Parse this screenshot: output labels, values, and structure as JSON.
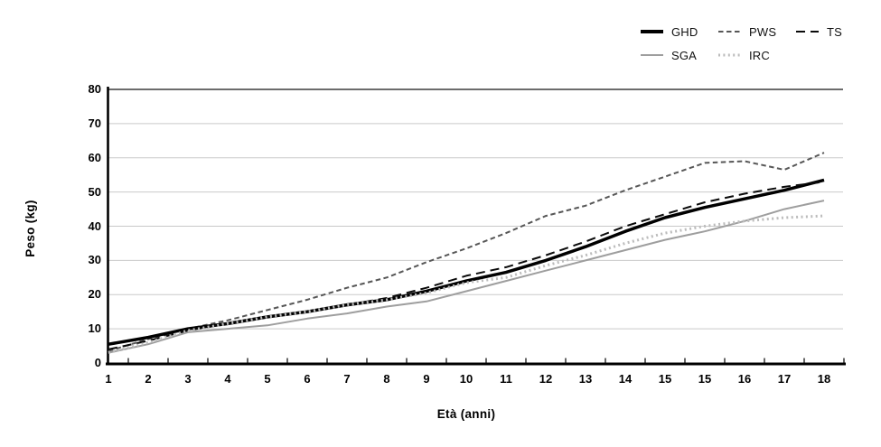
{
  "chart_data": {
    "type": "line",
    "title": "",
    "title_x": "Età (anni)",
    "title_y": "Peso (kg)",
    "categories": [
      "1",
      "2",
      "3",
      "4",
      "5",
      "6",
      "7",
      "8",
      "9",
      "10",
      "11",
      "12",
      "13",
      "14",
      "15",
      "15",
      "16",
      "17",
      "18"
    ],
    "y_axis": {
      "min": 0,
      "max": 80,
      "step": 10,
      "tick_labels": [
        "0",
        "10",
        "20",
        "30",
        "40",
        "50",
        "60",
        "70",
        "80"
      ]
    },
    "grid": "horizontal",
    "legend_position": "top-right",
    "colors": {
      "gridline": "#c9c9c9",
      "plot_top_border": "#3c3c3c",
      "axis": "#000000"
    },
    "series": [
      {
        "name": "GHD",
        "color": "#000000",
        "dash": "solid",
        "width": 3.5,
        "values": [
          5.5,
          7.5,
          10,
          11.5,
          13.5,
          15,
          17,
          18.5,
          21,
          24,
          26.5,
          30,
          34,
          38.5,
          42.5,
          45.5,
          48,
          50.5,
          53.5
        ]
      },
      {
        "name": "PWS",
        "color": "#575757",
        "dash": "dash",
        "width": 2,
        "values": [
          3.5,
          7,
          10,
          12.5,
          15.5,
          18.5,
          22,
          25,
          29.5,
          33.5,
          38,
          43,
          46,
          50.5,
          54.5,
          58.5,
          59,
          56.5,
          61.5
        ]
      },
      {
        "name": "TS",
        "color": "#0a0a0a",
        "dash": "longdash",
        "width": 2,
        "values": [
          4,
          6.5,
          9.5,
          11.5,
          13.5,
          15,
          17,
          19,
          22,
          25.5,
          28,
          31.5,
          35.5,
          40,
          43.5,
          47,
          49.5,
          51.5,
          53
        ]
      },
      {
        "name": "SGA",
        "color": "#9e9e9e",
        "dash": "solid",
        "width": 2,
        "values": [
          3,
          5.5,
          9,
          10,
          11,
          13,
          14.5,
          16.5,
          18,
          21,
          24,
          27,
          30,
          33,
          36,
          38.5,
          41.5,
          45,
          47.5
        ]
      },
      {
        "name": "IRC",
        "color": "#bcbcbc",
        "dash": "dot",
        "width": 3,
        "values": [
          3,
          6,
          9.5,
          11.5,
          13.5,
          15,
          17,
          18.5,
          20.5,
          23.5,
          25,
          28.5,
          31.5,
          35,
          38,
          40,
          41.5,
          42.5,
          43
        ]
      }
    ]
  }
}
